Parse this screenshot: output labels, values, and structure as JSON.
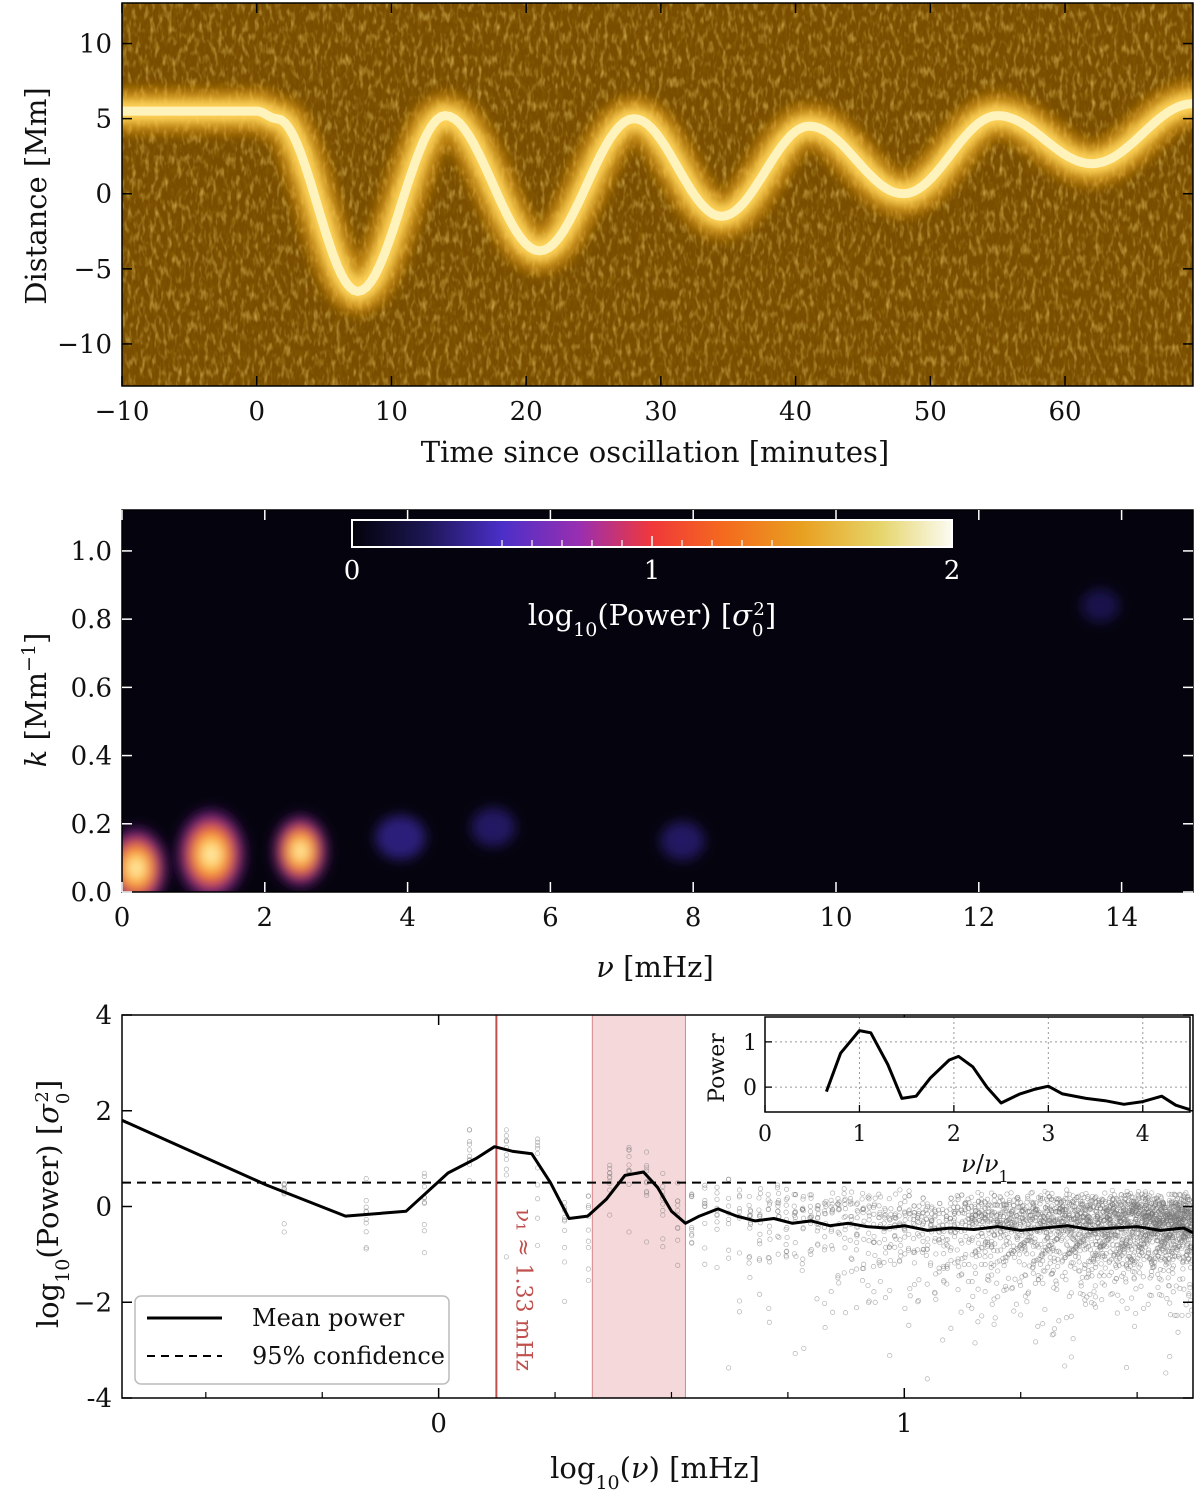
{
  "chart_data": [
    {
      "type": "heatmap",
      "panel": "time-distance",
      "xlabel": "Time since oscillation [minutes]",
      "ylabel": "Distance [Mm]",
      "xlim": [
        -10,
        69.5
      ],
      "ylim": [
        -12.8,
        12.7
      ],
      "xticks": [
        -10,
        0,
        10,
        20,
        30,
        40,
        50,
        60
      ],
      "yticks": [
        -10,
        -5,
        0,
        5,
        10
      ],
      "xtick_labels": [
        "−10",
        "0",
        "10",
        "20",
        "30",
        "40",
        "50",
        "60"
      ],
      "ytick_labels": [
        "−10",
        "−5",
        "0",
        "5",
        "10"
      ],
      "bright_track": {
        "t": [
          -10,
          0,
          1.5,
          7.5,
          14,
          21,
          28,
          34.5,
          41,
          48,
          55,
          62,
          69.5
        ],
        "d": [
          5.5,
          5.5,
          5.0,
          -6.5,
          5.2,
          -3.8,
          5.0,
          -1.5,
          4.5,
          0.0,
          5.2,
          2.0,
          6.0
        ]
      },
      "colors": {
        "background": "#7a4e00",
        "track": "#fff6c8"
      }
    },
    {
      "type": "heatmap",
      "panel": "k-nu power spectrum",
      "xlabel": "ν [mHz]",
      "ylabel": "k [Mm⁻¹]",
      "xlim": [
        0,
        15
      ],
      "ylim": [
        0,
        1.12
      ],
      "xticks": [
        0,
        2,
        4,
        6,
        8,
        10,
        12,
        14
      ],
      "yticks": [
        0.0,
        0.2,
        0.4,
        0.6,
        0.8,
        1.0
      ],
      "ytick_labels": [
        "0.0",
        "0.2",
        "0.4",
        "0.6",
        "0.8",
        "1.0"
      ],
      "colorbar": {
        "range": [
          0,
          2
        ],
        "ticks": [
          0,
          1,
          2
        ],
        "label": "log10(Power) [σ₀²]",
        "colormap": "thermal (black-purple-red-orange-yellow-white)"
      },
      "blobs": [
        {
          "nu": 0.2,
          "k": 0.07,
          "log_power": 1.8
        },
        {
          "nu": 1.25,
          "k": 0.11,
          "log_power": 2.0
        },
        {
          "nu": 2.5,
          "k": 0.12,
          "log_power": 1.6
        },
        {
          "nu": 3.9,
          "k": 0.16,
          "log_power": 0.45
        },
        {
          "nu": 5.2,
          "k": 0.19,
          "log_power": 0.3
        },
        {
          "nu": 7.85,
          "k": 0.15,
          "log_power": 0.3
        },
        {
          "nu": 13.7,
          "k": 0.84,
          "log_power": 0.15
        }
      ],
      "colors": {
        "background": "#05040e"
      }
    },
    {
      "type": "line",
      "panel": "mean power spectrum",
      "xlabel": "log10(ν) [mHz]",
      "ylabel": "log10(Power) [σ₀²]",
      "xlim": [
        -0.68,
        1.62
      ],
      "ylim": [
        -4,
        4
      ],
      "xticks": [
        0,
        1
      ],
      "yticks": [
        -4,
        -2,
        0,
        2,
        4
      ],
      "ytick_labels": [
        "-4",
        "−2",
        "0",
        "2",
        "4"
      ],
      "series": [
        {
          "name": "Mean power",
          "x": [
            -0.68,
            -0.37,
            -0.2,
            -0.07,
            0.02,
            0.08,
            0.12,
            0.16,
            0.2,
            0.24,
            0.28,
            0.32,
            0.36,
            0.4,
            0.44,
            0.47,
            0.5,
            0.53,
            0.56,
            0.6,
            0.64,
            0.68,
            0.72,
            0.76,
            0.8,
            0.84,
            0.88,
            0.92,
            0.96,
            1.0,
            1.05,
            1.1,
            1.15,
            1.2,
            1.25,
            1.3,
            1.35,
            1.4,
            1.45,
            1.5,
            1.55,
            1.6,
            1.62
          ],
          "y": [
            1.8,
            0.45,
            -0.2,
            -0.1,
            0.7,
            1.0,
            1.25,
            1.15,
            1.1,
            0.5,
            -0.25,
            -0.2,
            0.15,
            0.65,
            0.72,
            0.4,
            -0.1,
            -0.35,
            -0.2,
            -0.05,
            -0.2,
            -0.3,
            -0.25,
            -0.35,
            -0.3,
            -0.4,
            -0.35,
            -0.42,
            -0.45,
            -0.4,
            -0.5,
            -0.45,
            -0.48,
            -0.42,
            -0.5,
            -0.45,
            -0.4,
            -0.48,
            -0.45,
            -0.42,
            -0.5,
            -0.45,
            -0.55
          ]
        },
        {
          "name": "95% confidence",
          "x": [
            -0.68,
            1.62
          ],
          "y": [
            0.5,
            0.5
          ]
        }
      ],
      "legend": {
        "entries": [
          "Mean power",
          "95% confidence"
        ],
        "location": "lower-left"
      },
      "annotations": {
        "nu1_line_x": 0.124,
        "nu1_label": "ν₁ ≈ 1.33 mHz",
        "shaded_band": [
          0.33,
          0.53
        ]
      },
      "scatter_range": {
        "x": [
          -0.37,
          1.62
        ],
        "y_low": -3.6,
        "y_high": 1.6
      },
      "colors": {
        "mean": "#000000",
        "confidence": "#000000",
        "nu1_line": "#c0504d",
        "band": "#e9a9ad",
        "scatter": "#888888"
      },
      "inset": {
        "type": "line",
        "xlabel": "ν/ν₁",
        "ylabel": "Power",
        "xlim": [
          0,
          4.5
        ],
        "ylim": [
          -0.55,
          1.55
        ],
        "xticks": [
          0,
          1,
          2,
          3,
          4
        ],
        "yticks": [
          0,
          1
        ],
        "grid": true,
        "x": [
          0.65,
          0.8,
          1.0,
          1.12,
          1.3,
          1.45,
          1.6,
          1.75,
          1.95,
          2.05,
          2.2,
          2.35,
          2.5,
          2.7,
          2.85,
          3.0,
          3.15,
          3.4,
          3.6,
          3.8,
          4.0,
          4.2,
          4.35,
          4.5
        ],
        "y": [
          -0.1,
          0.75,
          1.25,
          1.2,
          0.5,
          -0.25,
          -0.2,
          0.2,
          0.6,
          0.68,
          0.45,
          0.0,
          -0.35,
          -0.15,
          -0.05,
          0.02,
          -0.15,
          -0.25,
          -0.3,
          -0.38,
          -0.32,
          -0.2,
          -0.4,
          -0.5
        ]
      }
    }
  ]
}
